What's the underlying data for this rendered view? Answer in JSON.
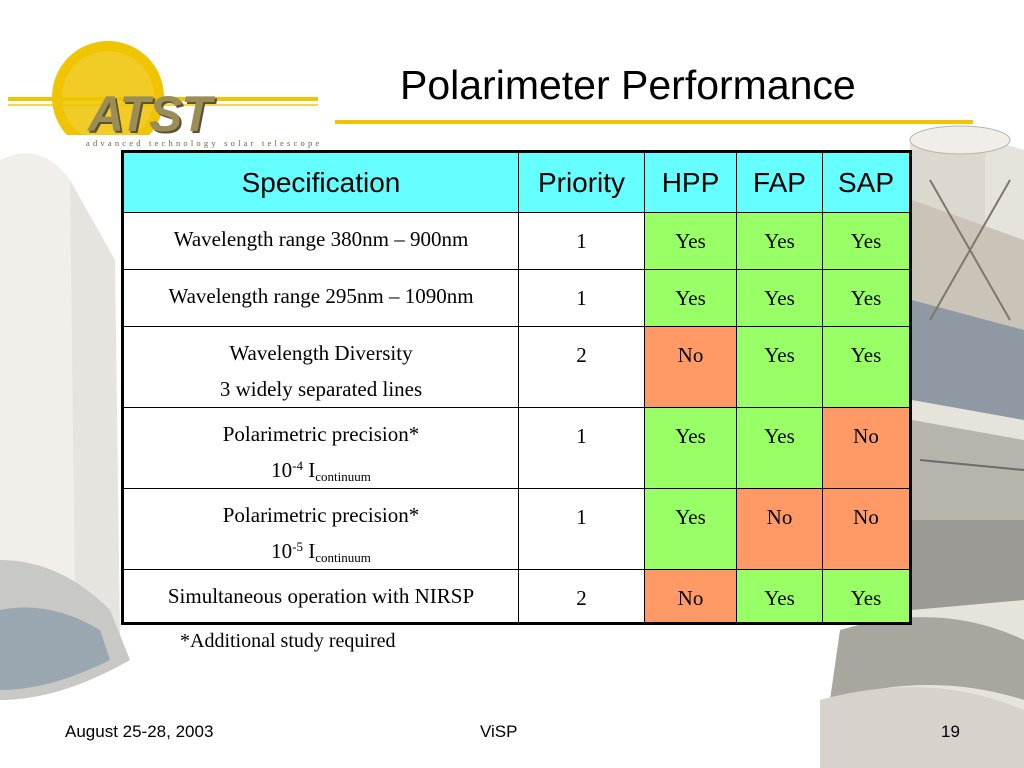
{
  "logo": {
    "text": "ATST",
    "subtitle": "advanced technology solar telescope"
  },
  "title": "Polarimeter Performance",
  "table": {
    "headers": [
      "Specification",
      "Priority",
      "HPP",
      "FAP",
      "SAP"
    ],
    "rows": [
      {
        "spec_line1": "Wavelength range 380nm – 900nm",
        "priority": "1",
        "hpp": "Yes",
        "fap": "Yes",
        "sap": "Yes"
      },
      {
        "spec_line1": "Wavelength range 295nm – 1090nm",
        "priority": "1",
        "hpp": "Yes",
        "fap": "Yes",
        "sap": "Yes"
      },
      {
        "spec_line1": "Wavelength Diversity",
        "spec_line2": "3 widely separated lines",
        "priority": "2",
        "hpp": "No",
        "fap": "Yes",
        "sap": "Yes"
      },
      {
        "spec_line1": "Polarimetric precision*",
        "spec_base": "10",
        "spec_exp": "-4",
        "spec_var": "I",
        "spec_sub": "continuum",
        "priority": "1",
        "hpp": "Yes",
        "fap": "Yes",
        "sap": "No"
      },
      {
        "spec_line1": "Polarimetric precision*",
        "spec_base": "10",
        "spec_exp": "-5",
        "spec_var": "I",
        "spec_sub": "continuum",
        "priority": "1",
        "hpp": "Yes",
        "fap": "No",
        "sap": "No"
      },
      {
        "spec_line1": "Simultaneous operation with NIRSP",
        "priority": "2",
        "hpp": "No",
        "fap": "Yes",
        "sap": "Yes"
      }
    ]
  },
  "footnote": "*Additional study required",
  "footer": {
    "date": "August 25-28, 2003",
    "center": "ViSP",
    "page": "19"
  },
  "colors": {
    "header_bg": "#66ffff",
    "yes_bg": "#99ff66",
    "no_bg": "#ff9966",
    "title_rule": "#f0c400",
    "logo_sun": "#f0c400"
  }
}
